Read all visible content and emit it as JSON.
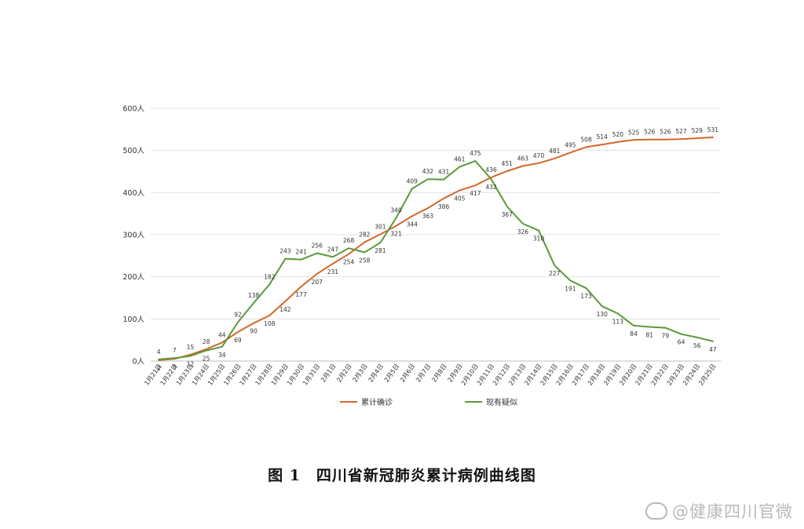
{
  "chart_data": {
    "type": "line",
    "caption": "图 1　四川省新冠肺炎累计病例曲线图",
    "ylim": [
      0,
      600
    ],
    "y_ticks": [
      "0人",
      "100人",
      "200人",
      "300人",
      "400人",
      "500人",
      "600人"
    ],
    "grid": true,
    "legend_position": "bottom",
    "categories": [
      "1月21日",
      "1月22日",
      "1月23日",
      "1月24日",
      "1月25日",
      "1月26日",
      "1月27日",
      "1月28日",
      "1月29日",
      "1月30日",
      "1月31日",
      "2月1日",
      "2月2日",
      "2月3日",
      "2月4日",
      "2月5日",
      "2月6日",
      "2月7日",
      "2月8日",
      "2月9日",
      "2月10日",
      "2月11日",
      "2月12日",
      "2月13日",
      "2月14日",
      "2月15日",
      "2月16日",
      "2月17日",
      "2月18日",
      "2月19日",
      "2月20日",
      "2月21日",
      "2月22日",
      "2月23日",
      "2月24日",
      "2月25日"
    ],
    "series": [
      {
        "name": "累计确诊",
        "color": "#D4672A",
        "values": [
          2,
          5,
          15,
          28,
          44,
          69,
          90,
          108,
          142,
          177,
          207,
          231,
          254,
          282,
          301,
          321,
          344,
          363,
          386,
          405,
          417,
          436,
          451,
          463,
          470,
          481,
          495,
          508,
          514,
          520,
          525,
          526,
          526,
          527,
          529,
          531
        ]
      },
      {
        "name": "现有疑似",
        "color": "#5A9A3A",
        "values": [
          4,
          7,
          12,
          25,
          34,
          92,
          138,
          182,
          243,
          241,
          256,
          247,
          268,
          258,
          281,
          340,
          409,
          432,
          431,
          461,
          475,
          432,
          367,
          326,
          310,
          227,
          191,
          173,
          130,
          113,
          84,
          81,
          79,
          64,
          56,
          47
        ]
      }
    ]
  },
  "watermark": "@健康四川官微"
}
